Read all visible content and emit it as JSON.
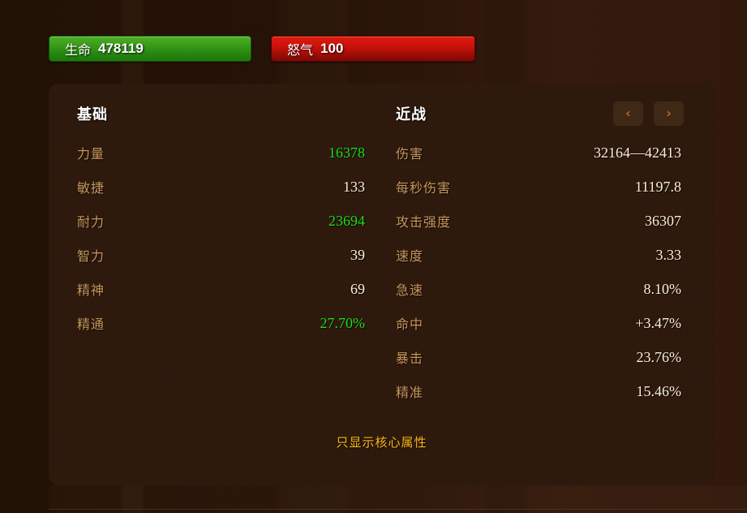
{
  "resource_bars": {
    "health": {
      "label": "生命",
      "value": "478119"
    },
    "rage": {
      "label": "怒气",
      "value": "100"
    }
  },
  "panel": {
    "left_column": {
      "title": "基础",
      "rows": [
        {
          "label": "力量",
          "value": "16378",
          "color": "green"
        },
        {
          "label": "敏捷",
          "value": "133",
          "color": "normal"
        },
        {
          "label": "耐力",
          "value": "23694",
          "color": "green"
        },
        {
          "label": "智力",
          "value": "39",
          "color": "normal"
        },
        {
          "label": "精神",
          "value": "69",
          "color": "normal"
        },
        {
          "label": "精通",
          "value": "27.70%",
          "color": "green"
        }
      ]
    },
    "right_column": {
      "title": "近战",
      "rows": [
        {
          "label": "伤害",
          "value": "32164—42413",
          "color": "normal"
        },
        {
          "label": "每秒伤害",
          "value": "11197.8",
          "color": "normal"
        },
        {
          "label": "攻击强度",
          "value": "36307",
          "color": "normal"
        },
        {
          "label": "速度",
          "value": "3.33",
          "color": "normal"
        },
        {
          "label": "急速",
          "value": "8.10%",
          "color": "normal"
        },
        {
          "label": "命中",
          "value": "+3.47%",
          "color": "normal"
        },
        {
          "label": "暴击",
          "value": "23.76%",
          "color": "normal"
        },
        {
          "label": "精准",
          "value": "15.46%",
          "color": "normal"
        }
      ]
    },
    "pager": {
      "prev_icon": "‹",
      "next_icon": "›"
    },
    "footer_link": "只显示核心属性"
  },
  "colors": {
    "label_gold": "#c8975c",
    "value_cream": "#fcf0d8",
    "stat_green": "#1bdd1b",
    "link_gold": "#fcba19",
    "chevron_brown": "#a9612b",
    "button_bg": "#402817",
    "panel_bg": "#2e1a0d",
    "health_green": "#2f9a18",
    "rage_red": "#cb130c"
  }
}
